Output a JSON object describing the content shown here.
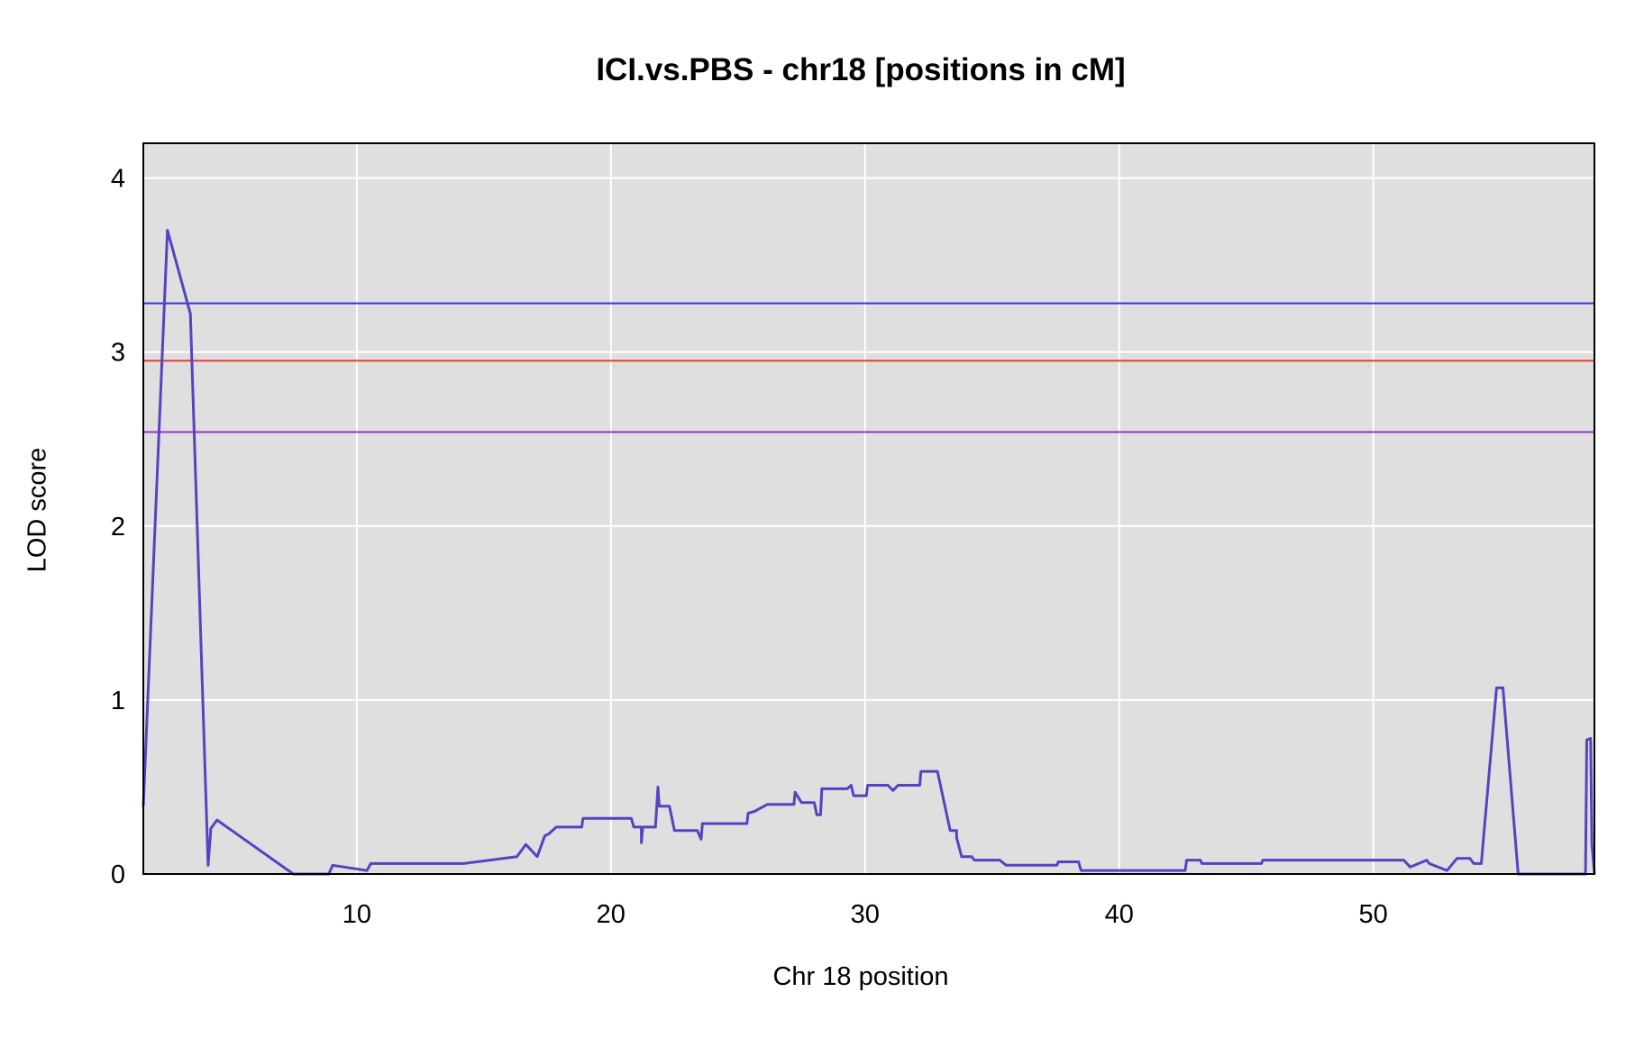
{
  "chart_data": {
    "type": "line",
    "title": "ICI.vs.PBS - chr18 [positions in cM]",
    "xlabel": "Chr 18 position",
    "ylabel": "LOD score",
    "xlim": [
      1.6,
      58.7
    ],
    "ylim": [
      0,
      4.2
    ],
    "xticks": [
      10,
      20,
      30,
      40,
      50
    ],
    "yticks": [
      0,
      1,
      2,
      3,
      4
    ],
    "grid": true,
    "background": "#dfdfdf",
    "thresholds": [
      {
        "value": 3.28,
        "color": "#3333dd"
      },
      {
        "value": 2.95,
        "color": "#e83a3a"
      },
      {
        "value": 2.54,
        "color": "#9933cc"
      }
    ],
    "series": [
      {
        "color": "#5544c0",
        "x": [
          1.6,
          2.55,
          3.45,
          4.15,
          4.25,
          4.25,
          4.5,
          7.5,
          8.9,
          9.05,
          10.4,
          10.55,
          14.2,
          16.3,
          16.65,
          17.1,
          17.4,
          17.55,
          17.85,
          18.85,
          18.9,
          20.8,
          20.9,
          21.2,
          21.2,
          21.25,
          21.75,
          21.85,
          21.9,
          22.3,
          22.5,
          23.4,
          23.55,
          23.6,
          25.35,
          25.4,
          25.65,
          26.15,
          27.2,
          27.25,
          27.5,
          28.0,
          28.1,
          28.25,
          28.3,
          29.3,
          29.45,
          29.55,
          30.05,
          30.1,
          30.9,
          31.1,
          31.3,
          32.15,
          32.2,
          32.85,
          33.35,
          33.6,
          33.6,
          33.8,
          34.2,
          34.3,
          35.3,
          35.55,
          37.55,
          37.6,
          38.4,
          38.5,
          40.5,
          40.6,
          42.6,
          42.65,
          43.2,
          43.25,
          45.6,
          45.65,
          51.2,
          51.45,
          52.1,
          52.2,
          52.9,
          53.3,
          53.8,
          53.95,
          54.25,
          54.85,
          55.1,
          55.7,
          58.35,
          58.4,
          58.55,
          58.6,
          58.7
        ],
        "y": [
          0.39,
          3.7,
          3.22,
          0.05,
          0.24,
          0.26,
          0.31,
          0.0,
          0.0,
          0.05,
          0.02,
          0.06,
          0.06,
          0.1,
          0.17,
          0.1,
          0.22,
          0.23,
          0.27,
          0.27,
          0.32,
          0.32,
          0.27,
          0.27,
          0.18,
          0.27,
          0.27,
          0.5,
          0.39,
          0.39,
          0.25,
          0.25,
          0.2,
          0.29,
          0.29,
          0.35,
          0.36,
          0.4,
          0.4,
          0.47,
          0.41,
          0.41,
          0.34,
          0.34,
          0.49,
          0.49,
          0.51,
          0.45,
          0.45,
          0.51,
          0.51,
          0.48,
          0.51,
          0.51,
          0.59,
          0.59,
          0.25,
          0.25,
          0.21,
          0.1,
          0.1,
          0.08,
          0.08,
          0.05,
          0.05,
          0.07,
          0.07,
          0.02,
          0.02,
          0.02,
          0.02,
          0.08,
          0.08,
          0.06,
          0.06,
          0.08,
          0.08,
          0.04,
          0.08,
          0.06,
          0.02,
          0.09,
          0.09,
          0.06,
          0.06,
          1.07,
          1.07,
          0.0,
          0.0,
          0.77,
          0.78,
          0.17,
          0.0
        ]
      }
    ]
  }
}
